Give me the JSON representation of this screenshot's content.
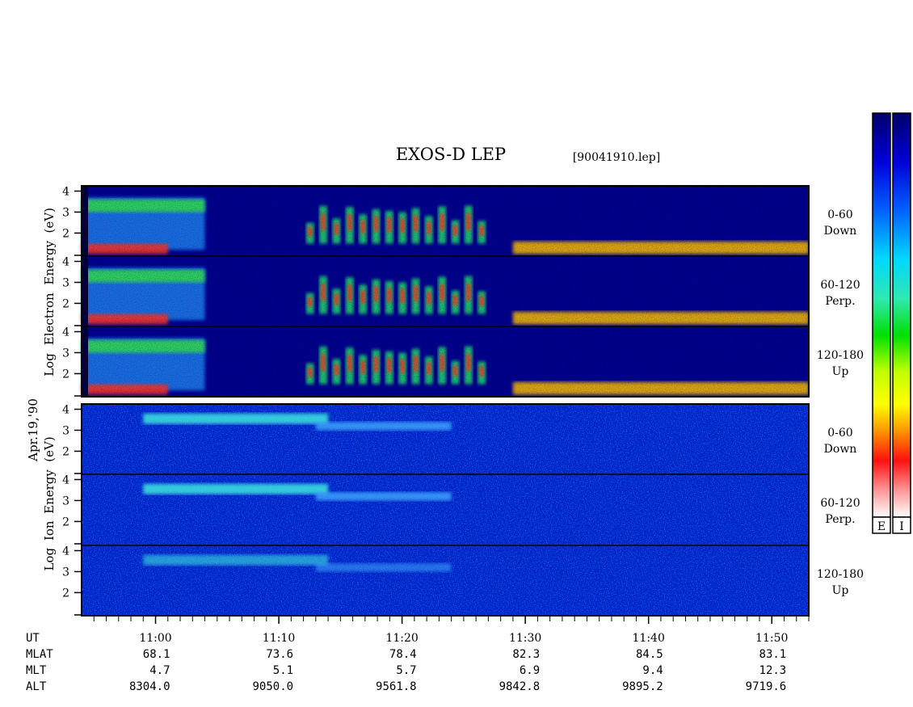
{
  "title": "EXOS-D LEP",
  "filename": "[90041910.lep]",
  "date_label": "Apr.19,'90",
  "colors": {
    "spectrogram_scale": [
      "#00007a",
      "#0000d8",
      "#0050ff",
      "#00c8ff",
      "#40ffd0",
      "#00ff00",
      "#c8ff00",
      "#ffff00",
      "#ffa000",
      "#ff2000",
      "#ff8080",
      "#ffffff"
    ]
  },
  "colorbars": [
    {
      "label": "E",
      "range": "electron counts (no numeric ticks shown)"
    },
    {
      "label": "I",
      "range": "ion counts (no numeric ticks shown)"
    }
  ],
  "chart_data": [
    {
      "type": "heatmap",
      "name": "electron",
      "ylabel_lines": [
        "Log",
        "Electron",
        "Energy",
        "(eV)"
      ],
      "ytick_labels": [
        "2",
        "3",
        "4"
      ],
      "panels": [
        {
          "pitch_angle": "0-60",
          "direction": "Down"
        },
        {
          "pitch_angle": "60-120",
          "direction": "Perp."
        },
        {
          "pitch_angle": "120-180",
          "direction": "Up"
        }
      ],
      "features": [
        {
          "time_start": "10:54",
          "time_end": "11:04",
          "energy_log": [
            3.0,
            3.6
          ],
          "level": "green"
        },
        {
          "time_start": "10:54",
          "time_end": "11:01",
          "energy_log": [
            1.0,
            1.5
          ],
          "level": "red"
        },
        {
          "time_start": "11:12",
          "time_end": "11:27",
          "energy_log": [
            1.5,
            3.3
          ],
          "level": "red bursts"
        },
        {
          "time_start": "11:29",
          "time_end": "11:53",
          "energy_log": [
            1.0,
            1.6
          ],
          "level": "yellow-red"
        }
      ]
    },
    {
      "type": "heatmap",
      "name": "ion",
      "ylabel_lines": [
        "Log",
        "Ion",
        "Energy",
        "(eV)"
      ],
      "ytick_labels": [
        "2",
        "3",
        "4"
      ],
      "panels": [
        {
          "pitch_angle": "0-60",
          "direction": "Down"
        },
        {
          "pitch_angle": "60-120",
          "direction": "Perp."
        },
        {
          "pitch_angle": "120-180",
          "direction": "Up"
        }
      ],
      "features": [
        {
          "time_start": "10:59",
          "time_end": "11:14",
          "energy_log": [
            3.3,
            3.8
          ],
          "level": "cyan"
        },
        {
          "time_start": "11:13",
          "time_end": "11:24",
          "energy_log": [
            3.0,
            3.4
          ],
          "level": "light blue"
        }
      ]
    }
  ],
  "x_axis": {
    "ticks": [
      "11:00",
      "11:10",
      "11:20",
      "11:30",
      "11:40",
      "11:50"
    ],
    "range": [
      "10:54",
      "11:53"
    ]
  },
  "orbit_table": {
    "row_labels": [
      "UT",
      "MLAT",
      "MLT",
      "ALT"
    ],
    "mlat": [
      "68.1",
      "73.6",
      "78.4",
      "82.3",
      "84.5",
      "83.1"
    ],
    "mlt": [
      "4.7",
      "5.1",
      "5.7",
      "6.9",
      "9.4",
      "12.3"
    ],
    "alt": [
      "8304.0",
      "9050.0",
      "9561.8",
      "9842.8",
      "9895.2",
      "9719.6"
    ]
  }
}
